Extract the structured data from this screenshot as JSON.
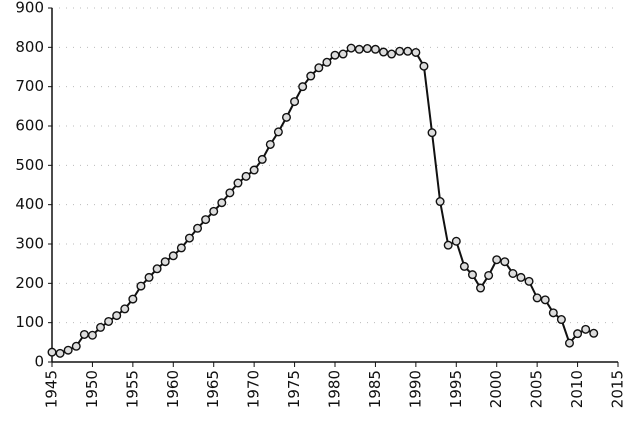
{
  "chart_data": {
    "type": "line",
    "x": [
      1945,
      1946,
      1947,
      1948,
      1949,
      1950,
      1951,
      1952,
      1953,
      1954,
      1955,
      1956,
      1957,
      1958,
      1959,
      1960,
      1961,
      1962,
      1963,
      1964,
      1965,
      1966,
      1967,
      1968,
      1969,
      1970,
      1971,
      1972,
      1973,
      1974,
      1975,
      1976,
      1977,
      1978,
      1979,
      1980,
      1981,
      1982,
      1983,
      1984,
      1985,
      1986,
      1987,
      1988,
      1989,
      1990,
      1991,
      1992,
      1993,
      1994,
      1995,
      1996,
      1997,
      1998,
      1999,
      2000,
      2001,
      2002,
      2003,
      2004,
      2005,
      2006,
      2007,
      2008,
      2009,
      2010,
      2011,
      2012
    ],
    "values": [
      25,
      22,
      30,
      40,
      70,
      68,
      88,
      103,
      118,
      135,
      160,
      193,
      215,
      237,
      255,
      270,
      290,
      315,
      340,
      362,
      383,
      405,
      430,
      455,
      472,
      488,
      515,
      553,
      585,
      622,
      662,
      700,
      727,
      748,
      762,
      780,
      783,
      798,
      795,
      797,
      795,
      788,
      783,
      790,
      790,
      787,
      752,
      583,
      408,
      297,
      307,
      243,
      222,
      188,
      220,
      260,
      255,
      225,
      215,
      205,
      163,
      158,
      125,
      108,
      48,
      72,
      83,
      73
    ],
    "color": "#111111",
    "xlim": [
      1945,
      2015
    ],
    "xticks": [
      1945,
      1950,
      1955,
      1960,
      1965,
      1970,
      1975,
      1980,
      1985,
      1990,
      1995,
      2000,
      2005,
      2010,
      2015
    ],
    "ylim": [
      0,
      900
    ],
    "yticks": [
      0,
      100,
      200,
      300,
      400,
      500,
      600,
      700,
      800,
      900
    ],
    "grid": true
  }
}
